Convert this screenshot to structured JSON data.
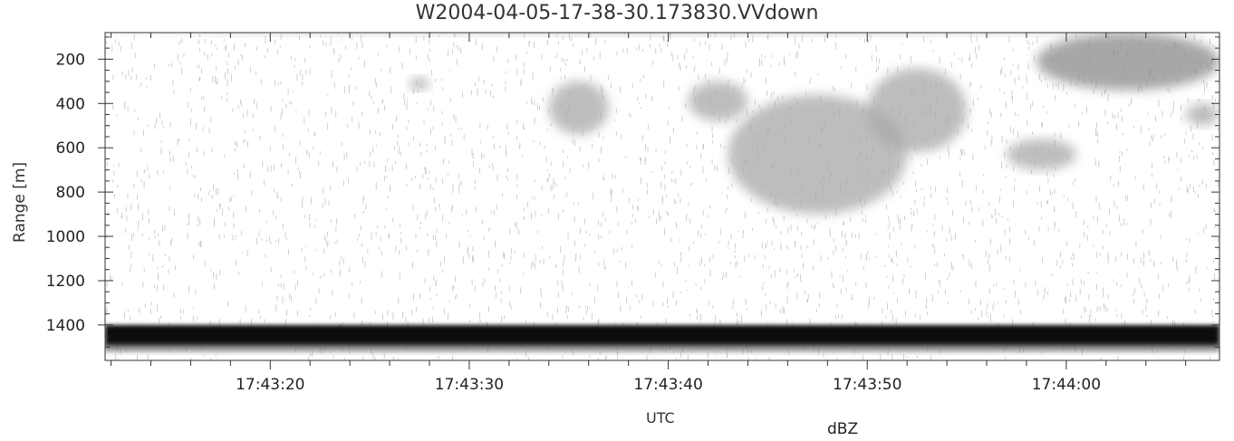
{
  "chart_data": {
    "type": "heatmap",
    "title": "W2004-04-05-17-38-30.173830.VVdown",
    "xlabel": "UTC",
    "ylabel": "Range [m]",
    "colorbar_label": "dBZ",
    "colormap": "grayscale (white = low, black = high)",
    "ylim": [
      1560,
      80
    ],
    "y_ticks": [
      200,
      400,
      600,
      800,
      1000,
      1200,
      1400
    ],
    "x_range": [
      "17:43:11.7",
      "17:44:07.7"
    ],
    "x_ticks": [
      "17:43:20",
      "17:43:30",
      "17:43:40",
      "17:43:50",
      "17:44:00"
    ],
    "grid": false,
    "features": [
      {
        "name": "surface return band",
        "range_m": [
          1400,
          1500
        ],
        "time": [
          "17:43:11.7",
          "17:44:07.7"
        ],
        "intensity": "strong"
      },
      {
        "name": "near-radar band",
        "range_m": [
          80,
          95
        ],
        "time": [
          "17:43:11.7",
          "17:44:07.7"
        ],
        "intensity": "weak"
      },
      {
        "name": "echo",
        "range_m": [
          280,
          340
        ],
        "time": [
          "17:43:27.0",
          "17:43:28.0"
        ],
        "intensity": "weak"
      },
      {
        "name": "echo",
        "range_m": [
          300,
          540
        ],
        "time": [
          "17:43:34.0",
          "17:43:37.0"
        ],
        "intensity": "weak"
      },
      {
        "name": "echo",
        "range_m": [
          300,
          480
        ],
        "time": [
          "17:43:41.0",
          "17:43:44.0"
        ],
        "intensity": "weak"
      },
      {
        "name": "echo",
        "range_m": [
          360,
          900
        ],
        "time": [
          "17:43:43.0",
          "17:43:52.0"
        ],
        "intensity": "weak"
      },
      {
        "name": "echo",
        "range_m": [
          240,
          620
        ],
        "time": [
          "17:43:50.0",
          "17:43:55.0"
        ],
        "intensity": "weak"
      },
      {
        "name": "echo",
        "range_m": [
          560,
          700
        ],
        "time": [
          "17:43:57.0",
          "17:44:00.5"
        ],
        "intensity": "weak"
      },
      {
        "name": "echo",
        "range_m": [
          80,
          340
        ],
        "time": [
          "17:43:58.5",
          "17:44:07.7"
        ],
        "intensity": "moderate"
      },
      {
        "name": "echo",
        "range_m": [
          400,
          500
        ],
        "time": [
          "17:44:06.0",
          "17:44:07.7"
        ],
        "intensity": "weak"
      }
    ]
  }
}
